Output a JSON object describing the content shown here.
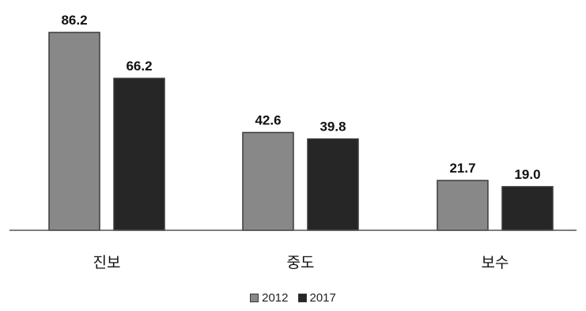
{
  "chart_data": {
    "type": "bar",
    "categories": [
      "진보",
      "중도",
      "보수"
    ],
    "series": [
      {
        "name": "2012",
        "values": [
          86.2,
          42.6,
          21.7
        ],
        "color": "#888888"
      },
      {
        "name": "2017",
        "values": [
          66.2,
          39.8,
          19.0
        ],
        "color": "#262626"
      }
    ],
    "value_labels": [
      [
        "86.2",
        "42.6",
        "21.7"
      ],
      [
        "66.2",
        "39.8",
        "19.0"
      ]
    ],
    "ylim": [
      0,
      86.2
    ],
    "grid": false,
    "legend_position": "bottom"
  }
}
